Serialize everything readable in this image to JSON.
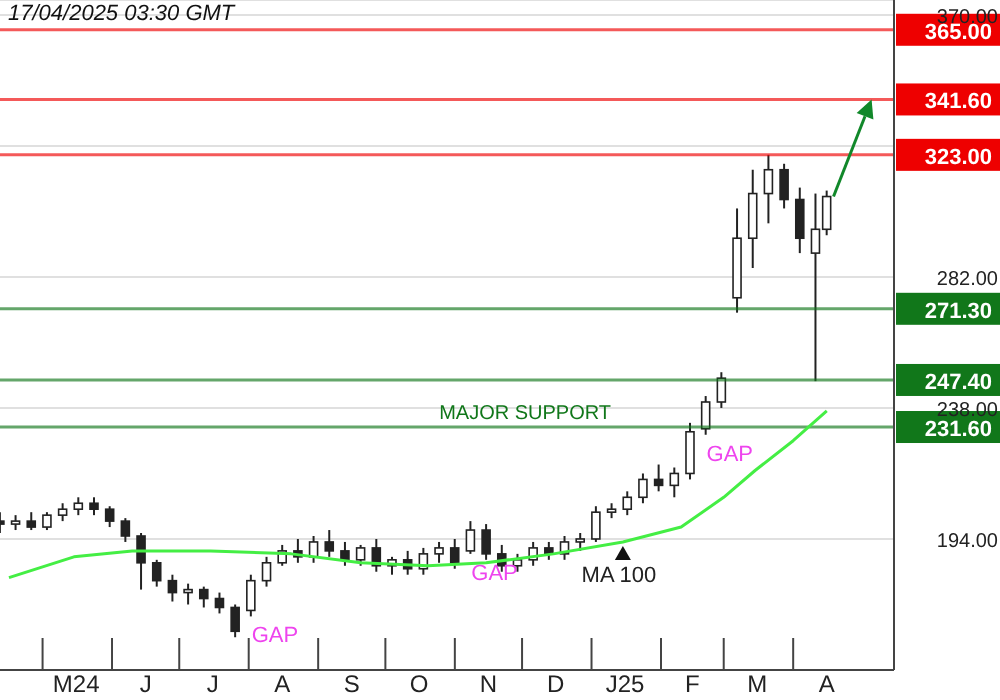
{
  "chart_data": {
    "type": "candlestick",
    "annotations": [
      "17/04/2025 03:30 GMT",
      {
        "text": "GAP",
        "x": "2024-08-02",
        "y": 168
      },
      {
        "text": "GAP",
        "x": "2024-11-08",
        "y": 189
      },
      {
        "text": "GAP",
        "x": "2025-02-21",
        "y": 229
      },
      {
        "text": "MAJOR SUPPORT",
        "x": "2024-10-25",
        "y": 231.6
      }
    ],
    "x": [
      "2024-04-12",
      "2024-04-19",
      "2024-04-26",
      "2024-05-03",
      "2024-05-10",
      "2024-05-17",
      "2024-05-24",
      "2024-05-31",
      "2024-06-07",
      "2024-06-14",
      "2024-06-21",
      "2024-06-28",
      "2024-07-05",
      "2024-07-12",
      "2024-07-19",
      "2024-07-26",
      "2024-08-02",
      "2024-08-09",
      "2024-08-16",
      "2024-08-23",
      "2024-08-30",
      "2024-09-06",
      "2024-09-13",
      "2024-09-20",
      "2024-09-27",
      "2024-10-04",
      "2024-10-11",
      "2024-10-18",
      "2024-10-25",
      "2024-11-01",
      "2024-11-08",
      "2024-11-15",
      "2024-11-22",
      "2024-11-29",
      "2024-12-06",
      "2024-12-13",
      "2024-12-20",
      "2024-12-27",
      "2025-01-03",
      "2025-01-10",
      "2025-01-17",
      "2025-01-24",
      "2025-01-31",
      "2025-02-07",
      "2025-02-14",
      "2025-02-21",
      "2025-02-28",
      "2025-03-07",
      "2025-03-14",
      "2025-03-21",
      "2025-03-28",
      "2025-04-04",
      "2025-04-11",
      "2025-04-16"
    ],
    "series": [
      {
        "color": "#222222",
        "ohlc": [
          [
            200,
            203,
            196,
            199
          ],
          [
            199,
            202,
            197,
            200
          ],
          [
            200,
            203,
            197,
            198
          ],
          [
            198,
            203,
            197,
            202
          ],
          [
            202,
            206,
            200,
            204
          ],
          [
            204,
            208,
            202,
            206
          ],
          [
            206,
            208,
            202,
            204
          ],
          [
            204,
            205,
            198,
            200
          ],
          [
            200,
            201,
            193,
            195
          ],
          [
            195,
            196,
            177,
            186
          ],
          [
            186,
            187,
            178,
            180
          ],
          [
            180,
            182,
            173,
            176
          ],
          [
            176,
            179,
            172,
            177
          ],
          [
            177,
            178,
            171,
            174
          ],
          [
            174,
            176,
            169,
            171
          ],
          [
            171,
            172,
            161,
            163
          ],
          [
            170,
            182,
            168,
            180
          ],
          [
            180,
            188,
            178,
            186
          ],
          [
            186,
            192,
            185,
            190
          ],
          [
            190,
            194,
            186,
            188
          ],
          [
            188,
            195,
            186,
            193
          ],
          [
            193,
            197,
            188,
            190
          ],
          [
            190,
            193,
            185,
            187
          ],
          [
            187,
            192,
            185,
            191
          ],
          [
            191,
            194,
            183,
            185
          ],
          [
            185,
            188,
            182,
            187
          ],
          [
            187,
            190,
            182,
            184
          ],
          [
            184,
            191,
            182,
            189
          ],
          [
            189,
            193,
            186,
            191
          ],
          [
            191,
            194,
            184,
            186
          ],
          [
            190,
            200,
            189,
            197
          ],
          [
            197,
            199,
            187,
            189
          ],
          [
            189,
            192,
            183,
            185
          ],
          [
            185,
            189,
            183,
            187
          ],
          [
            187,
            193,
            185,
            191
          ],
          [
            191,
            193,
            187,
            189
          ],
          [
            189,
            195,
            187,
            193
          ],
          [
            193,
            196,
            190,
            194
          ],
          [
            194,
            205,
            193,
            203
          ],
          [
            203,
            206,
            201,
            204
          ],
          [
            204,
            210,
            202,
            208
          ],
          [
            208,
            216,
            206,
            214
          ],
          [
            214,
            219,
            210,
            212
          ],
          [
            212,
            218,
            208,
            216
          ],
          [
            216,
            233,
            214,
            230
          ],
          [
            231,
            242,
            229,
            240
          ],
          [
            240,
            250,
            238,
            248
          ],
          [
            275,
            305,
            270,
            295
          ],
          [
            295,
            318,
            285,
            310
          ],
          [
            310,
            323,
            300,
            318
          ],
          [
            318,
            320,
            305,
            308
          ],
          [
            308,
            312,
            290,
            295
          ],
          [
            290,
            310,
            247,
            298
          ],
          [
            298,
            311,
            296,
            309
          ]
        ]
      },
      {
        "type": "line",
        "name": "MA 100",
        "color": "#44ee44",
        "x": [
          "2024-04-16",
          "2024-05-15",
          "2024-06-10",
          "2024-07-15",
          "2024-08-20",
          "2024-09-20",
          "2024-10-20",
          "2024-11-15",
          "2024-12-15",
          "2025-01-15",
          "2025-02-10",
          "2025-03-01",
          "2025-03-15",
          "2025-04-01",
          "2025-04-16"
        ],
        "values": [
          181,
          188,
          190,
          190,
          189,
          186,
          185,
          186,
          189,
          193,
          198,
          208,
          217,
          227,
          237
        ]
      }
    ],
    "xlim": [
      "2024-04-12",
      "2025-05-16"
    ],
    "xticks": [
      {
        "value": "2024-05-01",
        "label": null
      },
      {
        "value": "2024-05-16",
        "label": "M24"
      },
      {
        "value": "2024-06-01",
        "label": null
      },
      {
        "value": "2024-06-16",
        "label": "J"
      },
      {
        "value": "2024-07-01",
        "label": null
      },
      {
        "value": "2024-07-16",
        "label": "J"
      },
      {
        "value": "2024-08-01",
        "label": null
      },
      {
        "value": "2024-08-16",
        "label": "A"
      },
      {
        "value": "2024-09-01",
        "label": null
      },
      {
        "value": "2024-09-16",
        "label": "S"
      },
      {
        "value": "2024-10-01",
        "label": null
      },
      {
        "value": "2024-10-16",
        "label": "O"
      },
      {
        "value": "2024-11-01",
        "label": null
      },
      {
        "value": "2024-11-16",
        "label": "N"
      },
      {
        "value": "2024-12-01",
        "label": null
      },
      {
        "value": "2024-12-16",
        "label": "D"
      },
      {
        "value": "2025-01-01",
        "label": null
      },
      {
        "value": "2025-01-16",
        "label": "J25"
      },
      {
        "value": "2025-02-01",
        "label": null
      },
      {
        "value": "2025-02-15",
        "label": "F"
      },
      {
        "value": "2025-03-01",
        "label": null
      },
      {
        "value": "2025-03-16",
        "label": "M"
      },
      {
        "value": "2025-04-01",
        "label": null
      },
      {
        "value": "2025-04-16",
        "label": "A"
      }
    ],
    "ylim": [
      150,
      375
    ],
    "yticks": [
      {
        "value": 194,
        "label": "194.00"
      },
      {
        "value": 238,
        "label": "238.00"
      },
      {
        "value": 282,
        "label": "282.00"
      },
      {
        "value": 326,
        "label": null
      },
      {
        "value": 370,
        "label": "370.00"
      }
    ],
    "grid": "y",
    "legend": false,
    "ref_lines": [
      {
        "axis": "y",
        "value": 365,
        "label": "365.00",
        "color": "#ee0000"
      },
      {
        "axis": "y",
        "value": 341.6,
        "label": "341.60",
        "color": "#ee0000"
      },
      {
        "axis": "y",
        "value": 323,
        "label": "323.00",
        "color": "#ee0000"
      },
      {
        "axis": "y",
        "value": 271.3,
        "label": "271.30",
        "color": "#11771a"
      },
      {
        "axis": "y",
        "value": 247.4,
        "label": "247.40",
        "color": "#11771a"
      },
      {
        "axis": "y",
        "value": 231.6,
        "label": "231.60",
        "color": "#11771a"
      }
    ]
  }
}
